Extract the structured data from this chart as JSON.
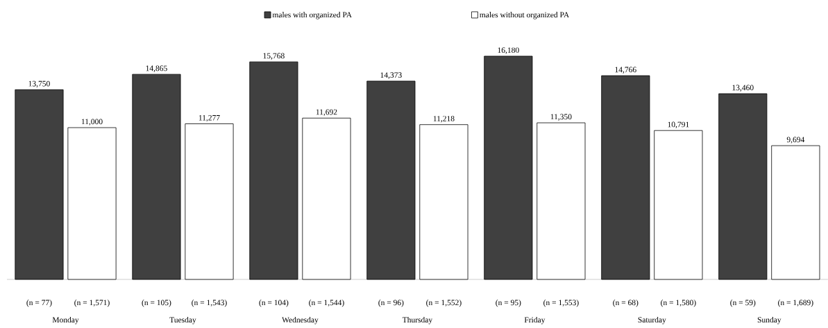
{
  "chart_data": {
    "type": "bar",
    "categories": [
      "Monday",
      "Tuesday",
      "Wednesday",
      "Thursday",
      "Friday",
      "Saturday",
      "Sunday"
    ],
    "series": [
      {
        "name": "males with organized PA",
        "color": "#404040",
        "values": [
          13750,
          14865,
          15768,
          14373,
          16180,
          14766,
          13460
        ],
        "value_labels": [
          "13,750",
          "14,865",
          "15,768",
          "14,373",
          "16,180",
          "14,766",
          "13,460"
        ]
      },
      {
        "name": "males without organized PA",
        "color": "#ffffff",
        "values": [
          11000,
          11277,
          11692,
          11218,
          11350,
          10791,
          9694
        ],
        "value_labels": [
          "11,000",
          "11,277",
          "11,692",
          "11,218",
          "11,350",
          "10,791",
          "9,694"
        ]
      }
    ],
    "annotations": [
      "(n = 77)",
      "(n = 1,571)",
      "(n = 105)",
      "(n = 1,543)",
      "(n = 104)",
      "(n = 1,544)",
      "(n = 96)",
      "(n = 1,552)",
      "(n = 95)",
      "(n = 1,553)",
      "(n = 68)",
      "(n = 1,580)",
      "(n = 59)",
      "(n = 1,689)"
    ],
    "legend": "top"
  }
}
